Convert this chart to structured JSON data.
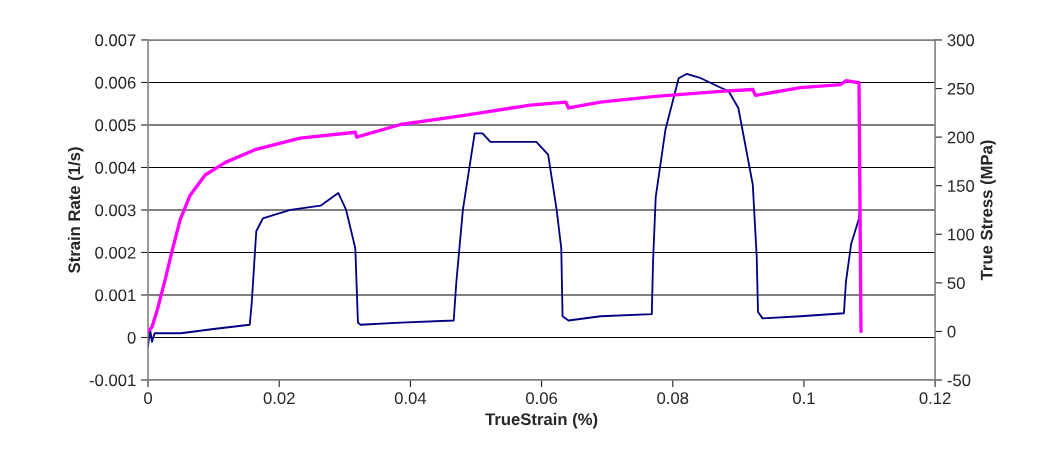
{
  "chart_data": {
    "type": "line",
    "xlabel": "TrueStrain (%)",
    "ylabel": "Strain Rate (1/s)",
    "y2label": "True Stress (MPa)",
    "xlim": [
      0,
      0.12
    ],
    "xticks": [
      0,
      0.02,
      0.04,
      0.06,
      0.08,
      0.1,
      0.12
    ],
    "ylim": [
      -0.001,
      0.007
    ],
    "yticks": [
      -0.001,
      0,
      0.001,
      0.002,
      0.003,
      0.004,
      0.005,
      0.006,
      0.007
    ],
    "y2lim": [
      -50,
      300
    ],
    "y2ticks": [
      -50,
      0,
      50,
      100,
      150,
      200,
      250,
      300
    ],
    "grid": "y",
    "legend": false,
    "marker": "none",
    "line_style": "solid",
    "series": [
      {
        "color": "#000080",
        "x": [
          0,
          0.0003,
          0.0006,
          0.001,
          0.005,
          0.01,
          0.0155,
          0.0158,
          0.0165,
          0.0175,
          0.0217,
          0.0263,
          0.029,
          0.0302,
          0.0316,
          0.032,
          0.0324,
          0.0385,
          0.0466,
          0.047,
          0.048,
          0.0498,
          0.051,
          0.0522,
          0.0553,
          0.0592,
          0.061,
          0.0623,
          0.063,
          0.0632,
          0.0641,
          0.069,
          0.0768,
          0.077,
          0.0774,
          0.0789,
          0.0809,
          0.0821,
          0.0843,
          0.087,
          0.0885,
          0.09,
          0.0922,
          0.0928,
          0.093,
          0.0937,
          0.0995,
          0.1061,
          0.1064,
          0.1072,
          0.1084,
          0.1085
        ],
        "values": [
          -0.0002,
          0.0002,
          -0.0001,
          0.0001,
          0.0001,
          0.0002,
          0.0003,
          0.0008,
          0.0025,
          0.0028,
          0.003,
          0.0031,
          0.0034,
          0.003,
          0.0021,
          0.00035,
          0.0003,
          0.00035,
          0.0004,
          0.0013,
          0.003,
          0.0048,
          0.0048,
          0.0046,
          0.0046,
          0.0046,
          0.0043,
          0.003,
          0.0021,
          0.0005,
          0.0004,
          0.0005,
          0.00055,
          0.0018,
          0.0033,
          0.0049,
          0.0061,
          0.0062,
          0.0061,
          0.0059,
          0.0058,
          0.0054,
          0.0036,
          0.0019,
          0.0006,
          0.00045,
          0.0005,
          0.00057,
          0.0013,
          0.0022,
          0.0028,
          0.003
        ]
      },
      {
        "color": "#ff00ff",
        "axis": "y2",
        "x": [
          0,
          0.0006,
          0.0014,
          0.0026,
          0.0037,
          0.0049,
          0.0064,
          0.0087,
          0.0118,
          0.0163,
          0.0232,
          0.0316,
          0.0318,
          0.0385,
          0.0469,
          0.0507,
          0.0583,
          0.0637,
          0.0641,
          0.069,
          0.0774,
          0.0873,
          0.0922,
          0.0926,
          0.0995,
          0.1056,
          0.1064,
          0.1084,
          0.1087
        ],
        "values": [
          0,
          4.5,
          22,
          53,
          84,
          115,
          140,
          161,
          174,
          187,
          199,
          205,
          200,
          213,
          221,
          225,
          233,
          236,
          230,
          236,
          242,
          247,
          249,
          243,
          251,
          254,
          258,
          256,
          0
        ]
      }
    ]
  }
}
